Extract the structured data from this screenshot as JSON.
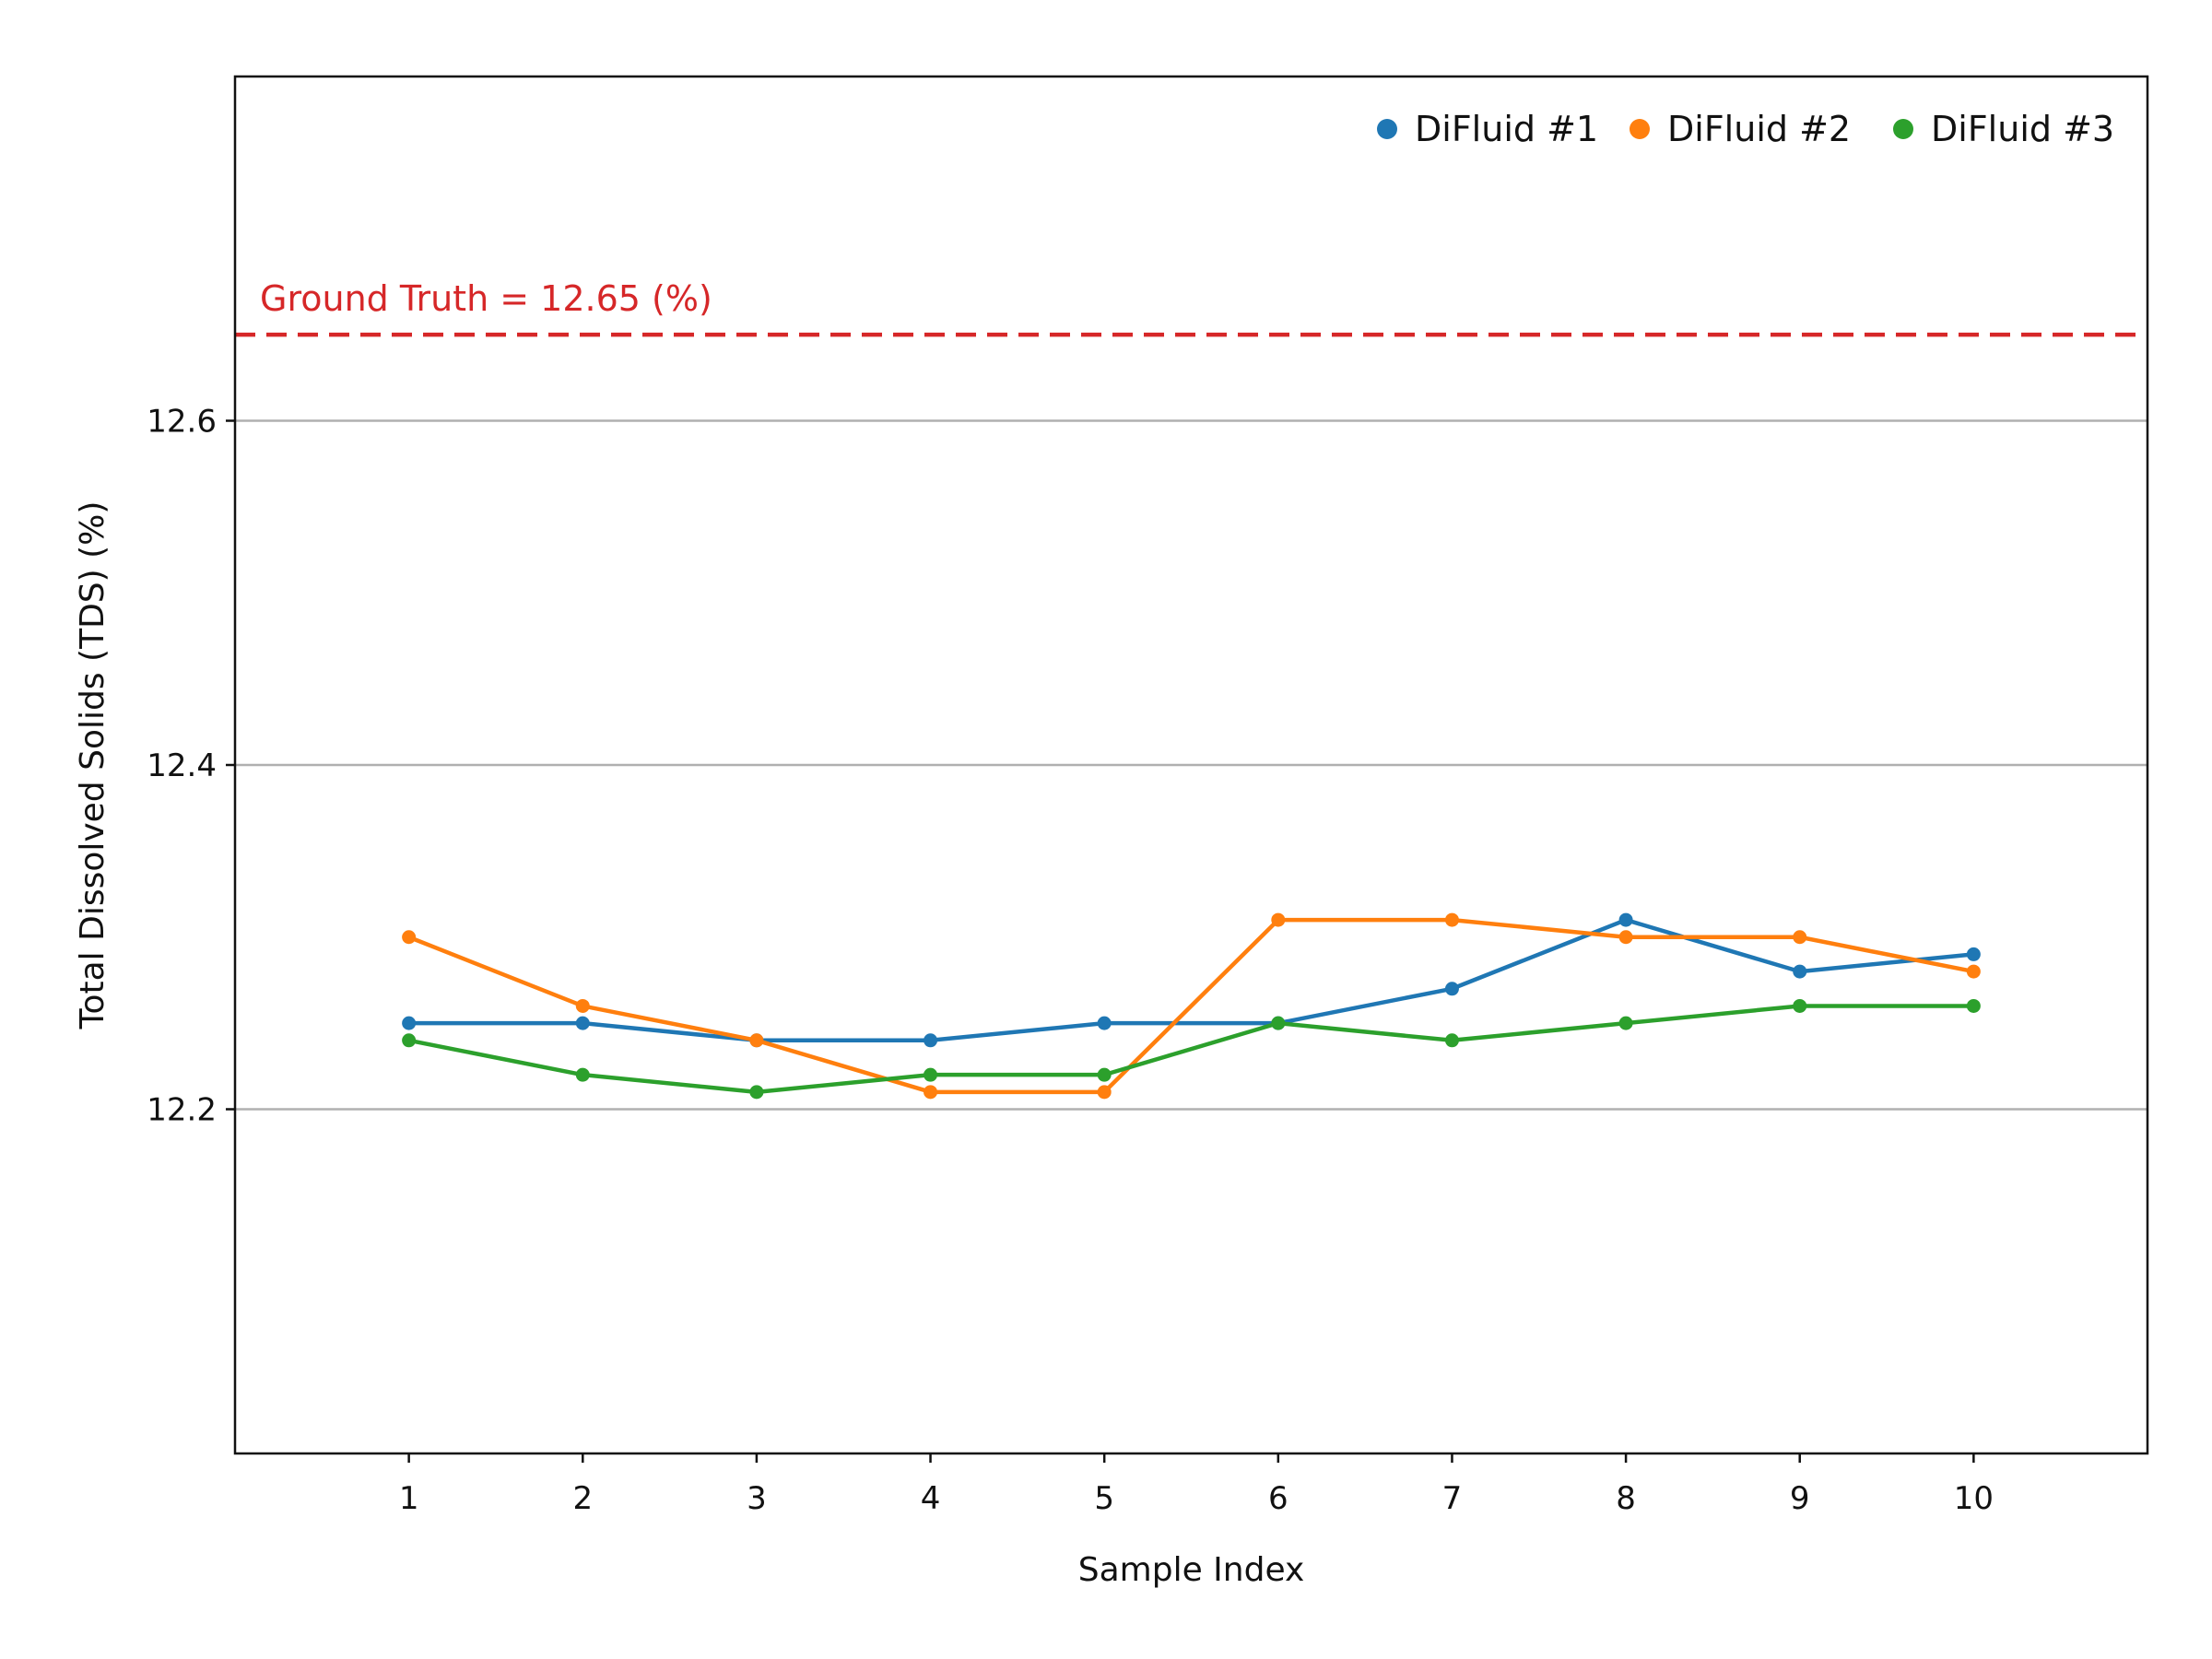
{
  "chart_data": {
    "type": "line",
    "title": "",
    "xlabel": "Sample Index",
    "ylabel": "Total Dissolved Solids (TDS) (%)",
    "x": [
      1,
      2,
      3,
      4,
      5,
      6,
      7,
      8,
      9,
      10
    ],
    "xticks": [
      "1",
      "2",
      "3",
      "4",
      "5",
      "6",
      "7",
      "8",
      "9",
      "10"
    ],
    "xlim": [
      0,
      11
    ],
    "ylim": [
      12.0,
      12.8
    ],
    "yticks": [
      12.2,
      12.4,
      12.6
    ],
    "ytick_labels": [
      "12.2",
      "12.4",
      "12.6"
    ],
    "grid": "horizontal",
    "legend_position": "top-right",
    "series": [
      {
        "name": "DiFluid #1",
        "color": "#1f77b4",
        "values": [
          12.25,
          12.25,
          12.24,
          12.24,
          12.25,
          12.25,
          12.27,
          12.31,
          12.28,
          12.29
        ]
      },
      {
        "name": "DiFluid #2",
        "color": "#ff7f0e",
        "values": [
          12.3,
          12.26,
          12.24,
          12.21,
          12.21,
          12.31,
          12.31,
          12.3,
          12.3,
          12.28
        ]
      },
      {
        "name": "DiFluid #3",
        "color": "#2ca02c",
        "values": [
          12.24,
          12.22,
          12.21,
          12.22,
          12.22,
          12.25,
          12.24,
          12.25,
          12.26,
          12.26
        ]
      }
    ],
    "reference_line": {
      "value": 12.65,
      "label": "Ground Truth = 12.65 (%)",
      "color": "#d62728"
    }
  }
}
